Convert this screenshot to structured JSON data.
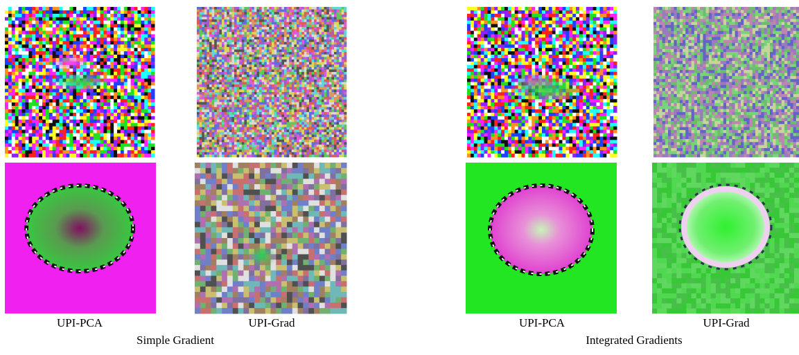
{
  "panels": [
    {
      "title": "Simple Gradient",
      "columns": [
        "UPI-PCA",
        "UPI-Grad"
      ]
    },
    {
      "title": "Integrated Gradients",
      "columns": [
        "UPI-PCA",
        "UPI-Grad"
      ]
    }
  ]
}
